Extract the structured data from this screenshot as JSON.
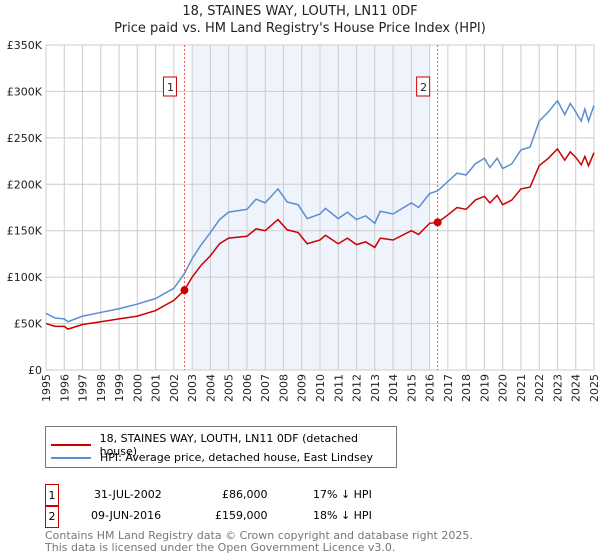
{
  "title": "18, STAINES WAY, LOUTH, LN11 0DF",
  "subtitle": "Price paid vs. HM Land Registry's House Price Index (HPI)",
  "chart_data": {
    "type": "line",
    "title": "18, STAINES WAY, LOUTH, LN11 0DF",
    "subtitle": "Price paid vs. HM Land Registry's House Price Index (HPI)",
    "xlim": [
      1995,
      2025.1
    ],
    "ylim": [
      0,
      350000
    ],
    "x_ticks": [
      "1995",
      "1996",
      "1997",
      "1998",
      "1999",
      "2000",
      "2001",
      "2002",
      "2003",
      "2004",
      "2005",
      "2006",
      "2007",
      "2008",
      "2009",
      "2010",
      "2011",
      "2012",
      "2013",
      "2014",
      "2015",
      "2016",
      "2017",
      "2018",
      "2019",
      "2020",
      "2021",
      "2022",
      "2023",
      "2024",
      "2025"
    ],
    "y_ticks": [
      {
        "v": 0,
        "label": "£0"
      },
      {
        "v": 50000,
        "label": "£50K"
      },
      {
        "v": 100000,
        "label": "£100K"
      },
      {
        "v": 150000,
        "label": "£150K"
      },
      {
        "v": 200000,
        "label": "£200K"
      },
      {
        "v": 250000,
        "label": "£250K"
      },
      {
        "v": 300000,
        "label": "£300K"
      },
      {
        "v": 350000,
        "label": "£350K"
      }
    ],
    "grid": true,
    "shaded_range": [
      2003,
      2016
    ],
    "series": [
      {
        "name": "18, STAINES WAY, LOUTH, LN11 0DF (detached house)",
        "color": "#cc0000",
        "x": [
          1995,
          1995.5,
          1996,
          1996.2,
          1997,
          1998,
          1999,
          2000,
          2001,
          2002,
          2002.58,
          2003,
          2003.5,
          2004,
          2004.5,
          2005,
          2006,
          2006.5,
          2007,
          2007.7,
          2008.2,
          2008.8,
          2009.3,
          2010,
          2010.3,
          2011,
          2011.5,
          2012,
          2012.5,
          2013,
          2013.3,
          2014,
          2015,
          2015.4,
          2016,
          2016.44,
          2017,
          2017.5,
          2018,
          2018.5,
          2019,
          2019.3,
          2019.7,
          2020,
          2020.5,
          2021,
          2021.5,
          2022,
          2022.5,
          2023,
          2023.4,
          2023.7,
          2024,
          2024.3,
          2024.5,
          2024.7,
          2025
        ],
        "y": [
          50000,
          47000,
          47000,
          44000,
          49000,
          52000,
          55000,
          58000,
          64000,
          75000,
          86000,
          100000,
          113000,
          123000,
          136000,
          142000,
          144000,
          152000,
          150000,
          162000,
          151000,
          148000,
          136000,
          140000,
          145000,
          136000,
          142000,
          135000,
          138000,
          132000,
          142000,
          140000,
          150000,
          146000,
          158000,
          159000,
          167000,
          175000,
          173000,
          183000,
          187000,
          180000,
          188000,
          178000,
          183000,
          195000,
          197000,
          220000,
          228000,
          238000,
          226000,
          235000,
          229000,
          221000,
          230000,
          220000,
          234000
        ]
      },
      {
        "name": "HPI: Average price, detached house, East Lindsey",
        "color": "#5b8ed0",
        "x": [
          1995,
          1995.5,
          1996,
          1996.2,
          1997,
          1998,
          1999,
          2000,
          2001,
          2002,
          2002.58,
          2003,
          2003.5,
          2004,
          2004.5,
          2005,
          2006,
          2006.5,
          2007,
          2007.7,
          2008.2,
          2008.8,
          2009.3,
          2010,
          2010.3,
          2011,
          2011.5,
          2012,
          2012.5,
          2013,
          2013.3,
          2014,
          2015,
          2015.4,
          2016,
          2016.44,
          2017,
          2017.5,
          2018,
          2018.5,
          2019,
          2019.3,
          2019.7,
          2020,
          2020.5,
          2021,
          2021.5,
          2022,
          2022.5,
          2023,
          2023.4,
          2023.7,
          2024,
          2024.3,
          2024.5,
          2024.7,
          2025
        ],
        "y": [
          61000,
          56000,
          55000,
          52000,
          58000,
          62000,
          66000,
          71000,
          77000,
          88000,
          104000,
          120000,
          135000,
          148000,
          162000,
          170000,
          173000,
          184000,
          180000,
          195000,
          181000,
          178000,
          163000,
          168000,
          174000,
          163000,
          170000,
          162000,
          166000,
          158000,
          171000,
          168000,
          180000,
          175000,
          190000,
          193000,
          203000,
          212000,
          210000,
          222000,
          228000,
          218000,
          228000,
          217000,
          222000,
          237000,
          240000,
          268000,
          278000,
          290000,
          275000,
          287000,
          278000,
          268000,
          281000,
          268000,
          285000
        ]
      }
    ],
    "annotations": [
      {
        "label": "1",
        "x": 2002.58,
        "y": 86000
      },
      {
        "label": "2",
        "x": 2016.44,
        "y": 159000
      }
    ]
  },
  "legend": {
    "property": "18, STAINES WAY, LOUTH, LN11 0DF (detached house)",
    "hpi": "HPI: Average price, detached house, East Lindsey"
  },
  "sales": [
    {
      "num": "1",
      "date": "31-JUL-2002",
      "price": "£86,000",
      "diff": "17% ↓ HPI"
    },
    {
      "num": "2",
      "date": "09-JUN-2016",
      "price": "£159,000",
      "diff": "18% ↓ HPI"
    }
  ],
  "footer": {
    "line1": "Contains HM Land Registry data © Crown copyright and database right 2025.",
    "line2": "This data is licensed under the Open Government Licence v3.0."
  }
}
